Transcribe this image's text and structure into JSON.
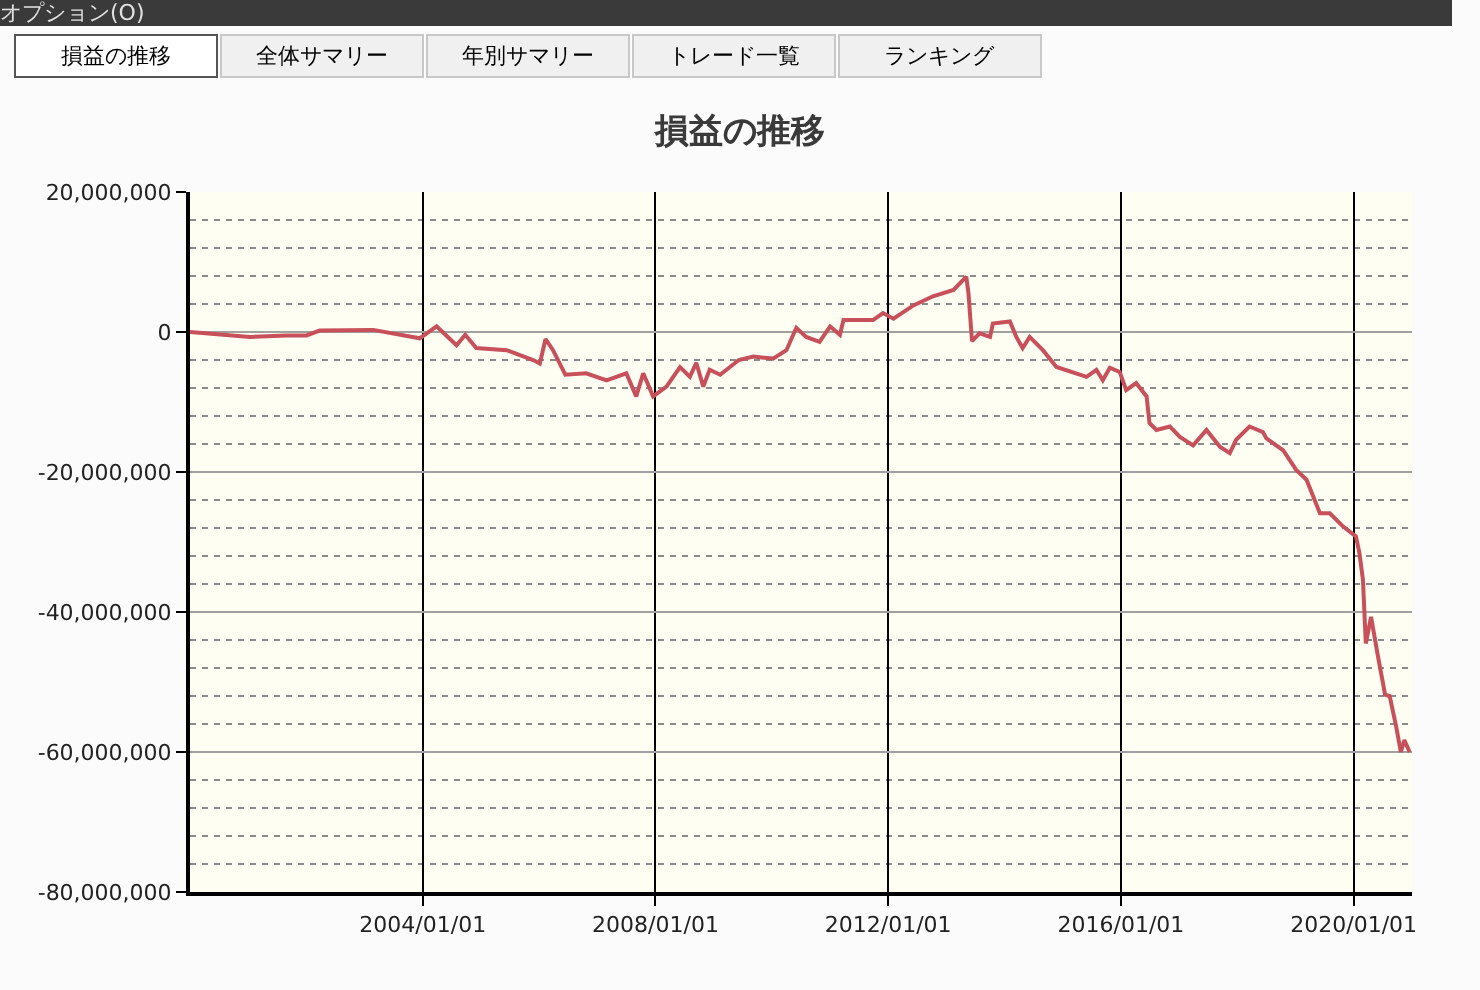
{
  "chart_data": {
    "type": "line",
    "title": "損益の推移",
    "annotations": [
      "オプション(O)",
      "損益の推移",
      "全体サマリー",
      "年別サマリー",
      "トレード一覧",
      "ランキング"
    ],
    "x": [
      "2000-01-01",
      "2001-01-12",
      "2001-08-29",
      "2002-01-01",
      "2002-03-25",
      "2003-02-24",
      "2003-12-13",
      "2004-03-28",
      "2004-07-31",
      "2004-09-24",
      "2004-12-02",
      "2005-06-10",
      "2005-11-24",
      "2006-01-05",
      "2006-02-10",
      "2006-03-29",
      "2006-06-14",
      "2006-10-23",
      "2007-02-28",
      "2007-07-02",
      "2007-09-02",
      "2007-10-16",
      "2007-12-17",
      "2008-03-10",
      "2008-06-03",
      "2008-08-04",
      "2008-09-13",
      "2008-10-27",
      "2008-12-06",
      "2009-02-10",
      "2009-06-07",
      "2009-09-06",
      "2010-01-08",
      "2010-04-02",
      "2010-06-03",
      "2010-08-04",
      "2010-10-27",
      "2011-01-01",
      "2011-03-04",
      "2011-03-26",
      "2011-09-28",
      "2011-11-29",
      "2012-02-03",
      "2012-06-07",
      "2012-10-08",
      "2013-02-14",
      "2013-05-05",
      "2013-05-19",
      "2013-06-10",
      "2013-07-27",
      "2013-10-01",
      "2013-10-19",
      "2014-02-03",
      "2014-03-15",
      "2014-04-24",
      "2014-06-07",
      "2014-08-29",
      "2014-11-22",
      "2015-05-30",
      "2015-07-31",
      "2015-09-09",
      "2015-10-23",
      "2015-12-24",
      "2016-02-03",
      "2016-04-05",
      "2016-06-10",
      "2016-06-28",
      "2016-08-11",
      "2016-11-03",
      "2017-01-05",
      "2017-03-29",
      "2017-06-21",
      "2017-09-13",
      "2017-11-14",
      "2017-12-24",
      "2018-03-18",
      "2018-06-10",
      "2018-07-02",
      "2018-10-16",
      "2019-01-05",
      "2019-03-11",
      "2019-06-03",
      "2019-08-04",
      "2019-10-27",
      "2020-01-15",
      "2020-02-06",
      "2020-02-28",
      "2020-03-17",
      "2020-04-19",
      "2020-06-02",
      "2020-07-16",
      "2020-08-14",
      "2020-09-24",
      "2020-10-23",
      "2020-11-14",
      "2020-12-17"
    ],
    "series": [
      {
        "color": "#c8505a",
        "values": [
          0,
          -700000,
          -500000,
          -500000,
          200000,
          300000,
          -900000,
          800000,
          -1900000,
          -400000,
          -2300000,
          -2600000,
          -4000000,
          -4500000,
          -1000000,
          -2600000,
          -6100000,
          -5900000,
          -6900000,
          -5900000,
          -9200000,
          -5900000,
          -9200000,
          -7800000,
          -5000000,
          -6400000,
          -4400000,
          -7800000,
          -5400000,
          -6100000,
          -4000000,
          -3500000,
          -3800000,
          -2600000,
          600000,
          -700000,
          -1400000,
          800000,
          -400000,
          1700000,
          1700000,
          2700000,
          1900000,
          3800000,
          5100000,
          6000000,
          7900000,
          5500000,
          -1300000,
          -200000,
          -700000,
          1200000,
          1500000,
          -700000,
          -2300000,
          -700000,
          -2600000,
          -5000000,
          -6400000,
          -5400000,
          -6900000,
          -5100000,
          -5700000,
          -8300000,
          -7300000,
          -9200000,
          -13000000,
          -14000000,
          -13500000,
          -15000000,
          -16200000,
          -14000000,
          -16400000,
          -17300000,
          -15400000,
          -13500000,
          -14300000,
          -15200000,
          -16900000,
          -19700000,
          -21100000,
          -25900000,
          -25900000,
          -27800000,
          -29200000,
          -31600000,
          -35400000,
          -44500000,
          -40700000,
          -46400000,
          -51800000,
          -52000000,
          -56400000,
          -60000000,
          -58300000,
          -60000000
        ]
      }
    ],
    "xlim": [
      "2000-01-01",
      "2021-01-01"
    ],
    "xticks": [
      {
        "value": "2004-01-01",
        "label": "2004/01/01"
      },
      {
        "value": "2008-01-01",
        "label": "2008/01/01"
      },
      {
        "value": "2012-01-01",
        "label": "2012/01/01"
      },
      {
        "value": "2016-01-01",
        "label": "2016/01/01"
      },
      {
        "value": "2020-01-01",
        "label": "2020/01/01"
      }
    ],
    "ylim": [
      -80000000,
      20000000
    ],
    "yticks": [
      {
        "value": 20000000,
        "label": "20,000,000"
      },
      {
        "value": 16000000,
        "label": null
      },
      {
        "value": 12000000,
        "label": null
      },
      {
        "value": 8000000,
        "label": null
      },
      {
        "value": 4000000,
        "label": null
      },
      {
        "value": 0,
        "label": "0"
      },
      {
        "value": -4000000,
        "label": null
      },
      {
        "value": -8000000,
        "label": null
      },
      {
        "value": -12000000,
        "label": null
      },
      {
        "value": -16000000,
        "label": null
      },
      {
        "value": -20000000,
        "label": "-20,000,000"
      },
      {
        "value": -24000000,
        "label": null
      },
      {
        "value": -28000000,
        "label": null
      },
      {
        "value": -32000000,
        "label": null
      },
      {
        "value": -36000000,
        "label": null
      },
      {
        "value": -40000000,
        "label": "-40,000,000"
      },
      {
        "value": -44000000,
        "label": null
      },
      {
        "value": -48000000,
        "label": null
      },
      {
        "value": -52000000,
        "label": null
      },
      {
        "value": -56000000,
        "label": null
      },
      {
        "value": -60000000,
        "label": "-60,000,000"
      },
      {
        "value": -64000000,
        "label": null
      },
      {
        "value": -68000000,
        "label": null
      },
      {
        "value": -72000000,
        "label": null
      },
      {
        "value": -76000000,
        "label": null
      },
      {
        "value": -80000000,
        "label": "-80,000,000"
      }
    ],
    "grid": true
  }
}
